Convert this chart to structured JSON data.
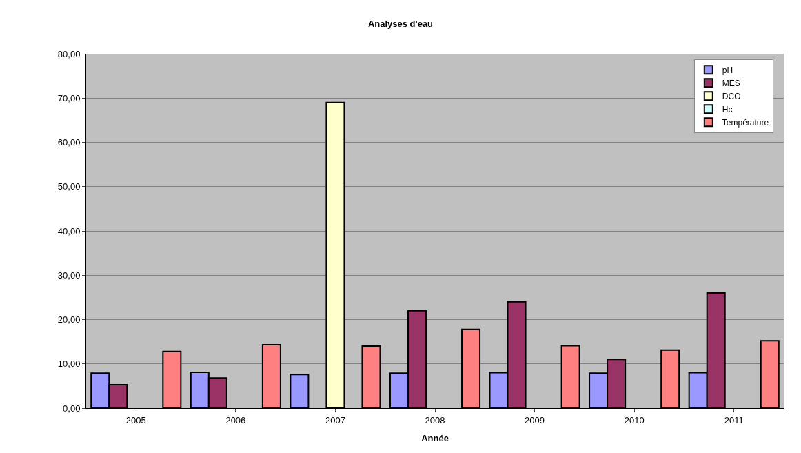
{
  "chart_data": {
    "type": "bar",
    "title": "Analyses d'eau",
    "xlabel": "Année",
    "categories": [
      "2005",
      "2006",
      "2007",
      "2008",
      "2009",
      "2010",
      "2011"
    ],
    "series": [
      {
        "name": "pH",
        "color": "#9999ff",
        "values": [
          7.9,
          8.1,
          7.6,
          7.9,
          8.0,
          7.9,
          8.0
        ]
      },
      {
        "name": "MES",
        "color": "#993366",
        "values": [
          5.3,
          6.8,
          null,
          22.0,
          24.0,
          11.0,
          26.0
        ]
      },
      {
        "name": "DCO",
        "color": "#ffffcc",
        "values": [
          null,
          null,
          69.0,
          null,
          null,
          null,
          null
        ]
      },
      {
        "name": "Hc",
        "color": "#ccffff",
        "values": [
          null,
          null,
          null,
          null,
          null,
          null,
          null
        ]
      },
      {
        "name": "Température",
        "color": "#ff8080",
        "values": [
          12.8,
          14.3,
          14.0,
          17.8,
          14.1,
          13.1,
          15.2
        ]
      }
    ],
    "ylim": [
      0,
      80
    ],
    "yticks": [
      {
        "value": 0,
        "label": "0,00"
      },
      {
        "value": 10,
        "label": "10,00"
      },
      {
        "value": 20,
        "label": "20,00"
      },
      {
        "value": 30,
        "label": "30,00"
      },
      {
        "value": 40,
        "label": "40,00"
      },
      {
        "value": 50,
        "label": "50,00"
      },
      {
        "value": 60,
        "label": "60,00"
      },
      {
        "value": 70,
        "label": "70,00"
      },
      {
        "value": 80,
        "label": "80,00"
      }
    ],
    "grid": "y",
    "legend": "top right"
  }
}
